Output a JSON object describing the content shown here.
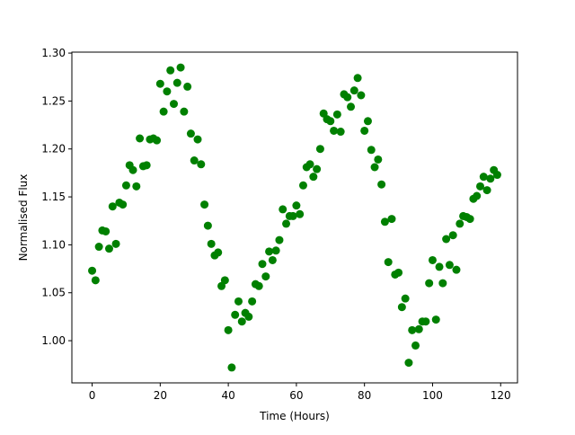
{
  "chart_data": {
    "type": "scatter",
    "x_label": "Time (Hours)",
    "y_label": "Normalised Flux",
    "x": [
      0,
      1,
      2,
      3,
      4,
      5,
      6,
      7,
      8,
      9,
      10,
      11,
      12,
      13,
      14,
      15,
      16,
      17,
      18,
      19,
      20,
      21,
      22,
      23,
      24,
      25,
      26,
      27,
      28,
      29,
      30,
      31,
      32,
      33,
      34,
      35,
      36,
      37,
      38,
      39,
      40,
      41,
      42,
      43,
      44,
      45,
      46,
      47,
      48,
      49,
      50,
      51,
      52,
      53,
      54,
      55,
      56,
      57,
      58,
      59,
      60,
      61,
      62,
      63,
      64,
      65,
      66,
      67,
      68,
      69,
      70,
      71,
      72,
      73,
      74,
      75,
      76,
      77,
      78,
      79,
      80,
      81,
      82,
      83,
      84,
      85,
      86,
      87,
      88,
      89,
      90,
      91,
      92,
      93,
      94,
      95,
      96,
      97,
      98,
      99,
      100,
      101,
      102,
      103,
      104,
      105,
      106,
      107,
      108,
      109,
      110,
      111,
      112,
      113,
      114,
      115,
      116,
      117,
      118,
      119
    ],
    "values": [
      1.073,
      1.063,
      1.098,
      1.115,
      1.114,
      1.096,
      1.14,
      1.101,
      1.144,
      1.142,
      1.162,
      1.183,
      1.178,
      1.161,
      1.211,
      1.182,
      1.183,
      1.21,
      1.211,
      1.209,
      1.268,
      1.239,
      1.26,
      1.282,
      1.247,
      1.269,
      1.285,
      1.239,
      1.265,
      1.216,
      1.188,
      1.21,
      1.184,
      1.142,
      1.12,
      1.101,
      1.089,
      1.092,
      1.057,
      1.063,
      1.011,
      0.972,
      1.027,
      1.041,
      1.02,
      1.029,
      1.025,
      1.041,
      1.059,
      1.057,
      1.08,
      1.067,
      1.093,
      1.084,
      1.094,
      1.105,
      1.137,
      1.122,
      1.13,
      1.13,
      1.141,
      1.132,
      1.162,
      1.181,
      1.184,
      1.171,
      1.179,
      1.2,
      1.237,
      1.231,
      1.229,
      1.219,
      1.236,
      1.218,
      1.257,
      1.254,
      1.244,
      1.261,
      1.274,
      1.256,
      1.219,
      1.229,
      1.199,
      1.181,
      1.189,
      1.163,
      1.124,
      1.082,
      1.127,
      1.069,
      1.071,
      1.035,
      1.044,
      0.977,
      1.011,
      0.995,
      1.012,
      1.02,
      1.02,
      1.06,
      1.084,
      1.022,
      1.077,
      1.06,
      1.106,
      1.079,
      1.11,
      1.074,
      1.122,
      1.13,
      1.129,
      1.127,
      1.148,
      1.151,
      1.161,
      1.171,
      1.157,
      1.169,
      1.178,
      1.173
    ],
    "color": "#008000",
    "xlim": [
      -5.95,
      124.95
    ],
    "ylim": [
      0.956,
      1.301
    ],
    "xticks": [
      0,
      20,
      40,
      60,
      80,
      100,
      120
    ],
    "yticks": [
      {
        "value": 1.0,
        "label": "1.00"
      },
      {
        "value": 1.05,
        "label": "1.05"
      },
      {
        "value": 1.1,
        "label": "1.10"
      },
      {
        "value": 1.15,
        "label": "1.15"
      },
      {
        "value": 1.2,
        "label": "1.20"
      },
      {
        "value": 1.25,
        "label": "1.25"
      },
      {
        "value": 1.3,
        "label": "1.30"
      }
    ]
  }
}
